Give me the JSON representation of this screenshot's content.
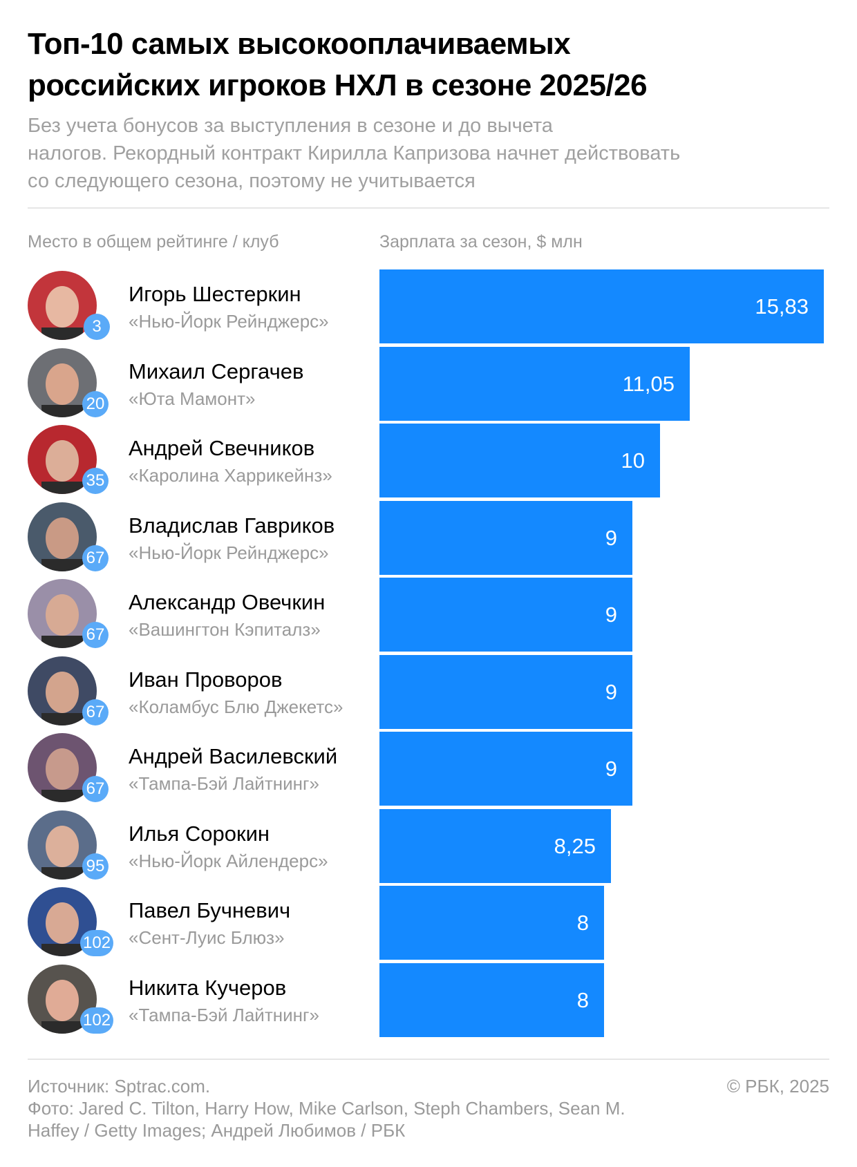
{
  "header": {
    "title_line1": "Топ-10 самых высокооплачиваемых",
    "title_line2": "российских игроков НХЛ в сезоне 2025/26",
    "subtitle_line1": "Без учета бонусов за выступления в сезоне и до вычета",
    "subtitle_line2": "налогов. Рекордный контракт Кирилла Капризова начнет действовать",
    "subtitle_line3": "со следующего сезона, поэтому не учитывается"
  },
  "columns": {
    "left": "Место в общем рейтинге / клуб",
    "right": "Зарплата за сезон, $ млн"
  },
  "colors": {
    "bar": "#1489ff",
    "rank_badge": "#5aaaf8",
    "muted_text": "#9a9a9a"
  },
  "players": [
    {
      "name": "Игорь Шестеркин",
      "club": "«Нью-Йорк Рейнджерс»",
      "rank": "3",
      "salary_label": "15,83",
      "salary": 15.83,
      "avatar_icon": "player-photo"
    },
    {
      "name": "Михаил Сергачев",
      "club": "«Юта Мамонт»",
      "rank": "20",
      "salary_label": "11,05",
      "salary": 11.05,
      "avatar_icon": "player-photo"
    },
    {
      "name": "Андрей Свечников",
      "club": "«Каролина Харрикейнз»",
      "rank": "35",
      "salary_label": "10",
      "salary": 10,
      "avatar_icon": "player-photo"
    },
    {
      "name": "Владислав Гавриков",
      "club": "«Нью-Йорк Рейнджерс»",
      "rank": "67",
      "salary_label": "9",
      "salary": 9,
      "avatar_icon": "player-photo"
    },
    {
      "name": "Александр Овечкин",
      "club": "«Вашингтон Кэпиталз»",
      "rank": "67",
      "salary_label": "9",
      "salary": 9,
      "avatar_icon": "player-photo"
    },
    {
      "name": "Иван Проворов",
      "club": "«Коламбус Блю Джекетс»",
      "rank": "67",
      "salary_label": "9",
      "salary": 9,
      "avatar_icon": "player-photo"
    },
    {
      "name": "Андрей Василевский",
      "club": "«Тампа-Бэй Лайтнинг»",
      "rank": "67",
      "salary_label": "9",
      "salary": 9,
      "avatar_icon": "player-photo"
    },
    {
      "name": "Илья Сорокин",
      "club": "«Нью-Йорк Айлендерс»",
      "rank": "95",
      "salary_label": "8,25",
      "salary": 8.25,
      "avatar_icon": "player-photo"
    },
    {
      "name": "Павел Бучневич",
      "club": "«Сент-Луис Блюз»",
      "rank": "102",
      "salary_label": "8",
      "salary": 8,
      "avatar_icon": "player-photo"
    },
    {
      "name": "Никита Кучеров",
      "club": "«Тампа-Бэй Лайтнинг»",
      "rank": "102",
      "salary_label": "8",
      "salary": 8,
      "avatar_icon": "player-photo"
    }
  ],
  "footer": {
    "source": "Источник: Sptrac.com.",
    "photo_line1": "Фото: Jared C. Tilton, Harry How, Mike Carlson, Steph Chambers, Sean M.",
    "photo_line2": "Haffey / Getty Images; Андрей Любимов / РБК",
    "copyright": "© РБК, 2025"
  },
  "chart_data": {
    "type": "bar",
    "orientation": "horizontal",
    "title": "Топ-10 самых высокооплачиваемых российских игроков НХЛ в сезоне 2025/26",
    "subtitle": "Без учета бонусов за выступления в сезоне и до вычета налогов. Рекордный контракт Кирилла Капризова начнет действовать со следующего сезона, поэтому не учитывается",
    "xlabel": "Зарплата за сезон, $ млн",
    "ylabel": "Место в общем рейтинге / клуб",
    "categories": [
      "Игорь Шестеркин",
      "Михаил Сергачев",
      "Андрей Свечников",
      "Владислав Гавриков",
      "Александр Овечкин",
      "Иван Проворов",
      "Андрей Василевский",
      "Илья Сорокин",
      "Павел Бучневич",
      "Никита Кучеров"
    ],
    "values": [
      15.83,
      11.05,
      10,
      9,
      9,
      9,
      9,
      8.25,
      8,
      8
    ],
    "ranks": [
      3,
      20,
      35,
      67,
      67,
      67,
      67,
      95,
      102,
      102
    ],
    "clubs": [
      "«Нью-Йорк Рейнджерс»",
      "«Юта Мамонт»",
      "«Каролина Харрикейнз»",
      "«Нью-Йорк Рейнджерс»",
      "«Вашингтон Кэпиталз»",
      "«Коламбус Блю Джекетс»",
      "«Тампа-Бэй Лайтнинг»",
      "«Нью-Йорк Айлендерс»",
      "«Сент-Луис Блюз»",
      "«Тампа-Бэй Лайтнинг»"
    ],
    "xlim": [
      0,
      15.83
    ],
    "grid": false,
    "legend": "none",
    "data_labels": true,
    "color": "#1489ff"
  }
}
